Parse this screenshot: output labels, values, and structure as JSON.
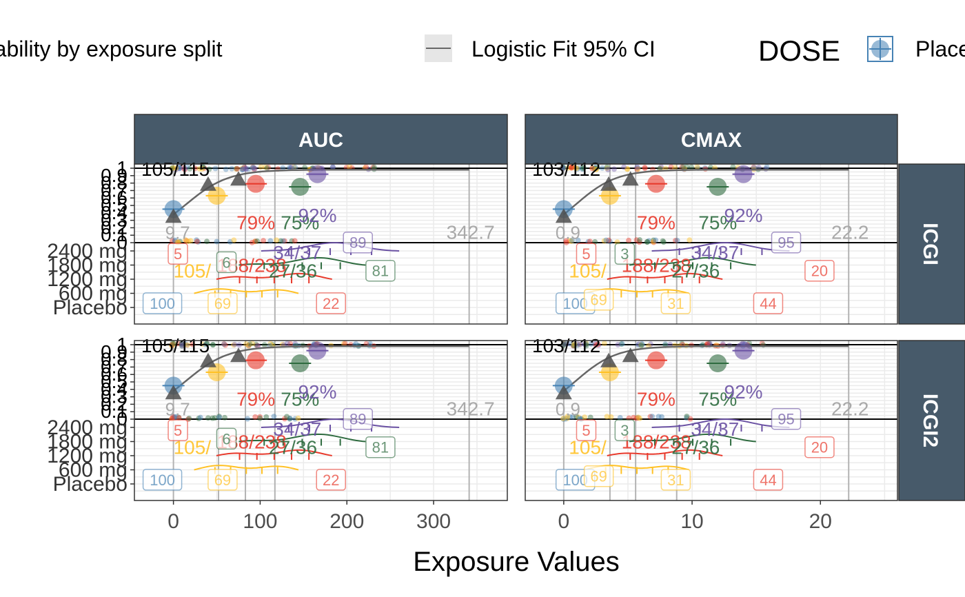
{
  "legend": {
    "prob_label": "Observed probability by exposure split",
    "ci_label": "Logistic Fit 95% CI",
    "dose_title": "DOSE",
    "dose_first": "Placebo"
  },
  "xlabel": "Exposure Values",
  "colors": {
    "placebo": "#4682B4",
    "d600": "#FFC125",
    "d1200": "#E8392B",
    "d1800": "#2E6B3F",
    "d2400": "#6A51A3",
    "strip": "#475A6A",
    "split_point": "#4D4D4D",
    "label_grey": "#A9A9A9"
  },
  "chart_data": {
    "type": "faceted probability plot with density strips",
    "dose_levels": [
      "Placebo",
      "600 mg",
      "1200 mg",
      "1800 mg",
      "2400 mg"
    ],
    "y_ticks_prob": [
      "0",
      "0.1",
      "0.2",
      "0.3",
      "0.4",
      "0.5",
      "0.6",
      "0.7",
      "0.8",
      "0.9",
      "1"
    ],
    "rows": [
      {
        "label": "ICGI"
      },
      {
        "label": "ICGI2"
      }
    ],
    "columns": [
      {
        "label": "AUC",
        "xlim": [
          -45,
          385
        ],
        "x_ticks": [
          0,
          100,
          200,
          300
        ],
        "split_cuts": [
          0,
          52,
          83,
          117,
          341
        ],
        "cut_label_last": "342.7",
        "cut_label_first": "9.7",
        "split_points": [
          {
            "x": 0,
            "y": 0.35
          },
          {
            "x": 40,
            "y": 0.78
          },
          {
            "x": 75,
            "y": 0.85
          }
        ],
        "group_probs": [
          {
            "dose": "Placebo",
            "x": 0,
            "y": 0.45,
            "text": ""
          },
          {
            "dose": "600 mg",
            "x": 50,
            "y": 0.63,
            "text": ""
          },
          {
            "dose": "1200 mg",
            "x": 95,
            "y": 0.79,
            "text": "79%"
          },
          {
            "dose": "1800 mg",
            "x": 146,
            "y": 0.75,
            "text": "75%"
          },
          {
            "dose": "2400 mg",
            "x": 166,
            "y": 0.92,
            "text": "92%"
          }
        ],
        "ratio_text": "105/115",
        "dose_label_boxes": [
          {
            "dose": "Placebo",
            "text": "100",
            "x": -35,
            "level": 0.3
          },
          {
            "dose": "600 mg",
            "text": "69",
            "x": 40,
            "level": 0.3
          },
          {
            "dose": "1200 mg",
            "text": "22",
            "x": 165,
            "level": 0.3
          },
          {
            "dose": "1200 mg",
            "text": "5",
            "x": -6,
            "level": 3.8
          },
          {
            "dose": "1800 mg",
            "text": "81",
            "x": 222,
            "level": 2.6
          },
          {
            "dose": "1800 mg",
            "text": "6",
            "x": 50,
            "level": 3.2
          },
          {
            "dose": "2400 mg",
            "text": "89",
            "x": 196,
            "level": 4.6
          }
        ],
        "ratio_labels": [
          {
            "dose": "600 mg",
            "text": "105/",
            "x": 0,
            "level": 2.6
          },
          {
            "dose": "1200 mg",
            "text": "188/238",
            "x": 50,
            "level": 3.0
          },
          {
            "dose": "1800 mg",
            "text": "27/36",
            "x": 110,
            "level": 2.6
          },
          {
            "dose": "2400 mg",
            "text": "34/37",
            "x": 115,
            "level": 3.9
          }
        ]
      },
      {
        "label": "CMAX",
        "xlim": [
          -3,
          26
        ],
        "x_ticks": [
          0,
          10,
          20
        ],
        "split_cuts": [
          0,
          3.6,
          5.6,
          8.8,
          22.2
        ],
        "cut_label_last": "22.2",
        "cut_label_first": "0.9",
        "split_points": [
          {
            "x": 0,
            "y": 0.35
          },
          {
            "x": 3.5,
            "y": 0.78
          },
          {
            "x": 5.2,
            "y": 0.85
          }
        ],
        "group_probs": [
          {
            "dose": "Placebo",
            "x": 0,
            "y": 0.45,
            "text": ""
          },
          {
            "dose": "600 mg",
            "x": 3.6,
            "y": 0.63,
            "text": ""
          },
          {
            "dose": "1200 mg",
            "x": 7.2,
            "y": 0.79,
            "text": "79%"
          },
          {
            "dose": "1800 mg",
            "x": 12,
            "y": 0.75,
            "text": "75%"
          },
          {
            "dose": "2400 mg",
            "x": 14,
            "y": 0.92,
            "text": "92%"
          }
        ],
        "ratio_text": "103/112",
        "dose_label_boxes": [
          {
            "dose": "Placebo",
            "text": "100",
            "x": -0.6,
            "level": 0.3
          },
          {
            "dose": "600 mg",
            "text": "69",
            "x": 1.6,
            "level": 0.55
          },
          {
            "dose": "600 mg",
            "text": "31",
            "x": 7.6,
            "level": 0.3
          },
          {
            "dose": "1200 mg",
            "text": "44",
            "x": 14.8,
            "level": 0.3
          },
          {
            "dose": "1200 mg",
            "text": "20",
            "x": 18.8,
            "level": 2.6
          },
          {
            "dose": "1200 mg",
            "text": "5",
            "x": 1.0,
            "level": 3.8
          },
          {
            "dose": "1800 mg",
            "text": "3",
            "x": 4.0,
            "level": 3.8
          },
          {
            "dose": "2400 mg",
            "text": "95",
            "x": 16.2,
            "level": 4.6
          }
        ],
        "ratio_labels": [
          {
            "dose": "600 mg",
            "text": "105/",
            "x": 0.4,
            "level": 2.6
          },
          {
            "dose": "1200 mg",
            "text": "188/238",
            "x": 4.5,
            "level": 3.0
          },
          {
            "dose": "1800 mg",
            "text": "27/36",
            "x": 8.4,
            "level": 2.6
          },
          {
            "dose": "2400 mg",
            "text": "34/37",
            "x": 9.9,
            "level": 3.9
          }
        ]
      }
    ]
  }
}
